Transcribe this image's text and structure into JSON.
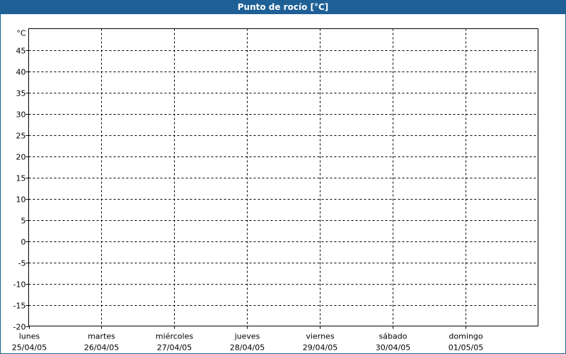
{
  "window": {
    "title": "Punto de rocío [°C]"
  },
  "chart_data": {
    "type": "line",
    "title": "Punto de rocío [°C]",
    "ylabel": "°C",
    "ylim": [
      -20,
      50
    ],
    "yticks": [
      45,
      40,
      35,
      30,
      25,
      20,
      15,
      10,
      5,
      0,
      -5,
      -10,
      -15,
      -20
    ],
    "categories": [
      {
        "day": "lunes",
        "date": "25/04/05"
      },
      {
        "day": "martes",
        "date": "26/04/05"
      },
      {
        "day": "miércoles",
        "date": "27/04/05"
      },
      {
        "day": "jueves",
        "date": "28/04/05"
      },
      {
        "day": "viernes",
        "date": "29/04/05"
      },
      {
        "day": "sábado",
        "date": "30/04/05"
      },
      {
        "day": "domingo",
        "date": "01/05/05"
      }
    ],
    "series": [],
    "grid": true,
    "colors": {
      "titlebar": "#1e6096",
      "grid": "#000000"
    }
  }
}
